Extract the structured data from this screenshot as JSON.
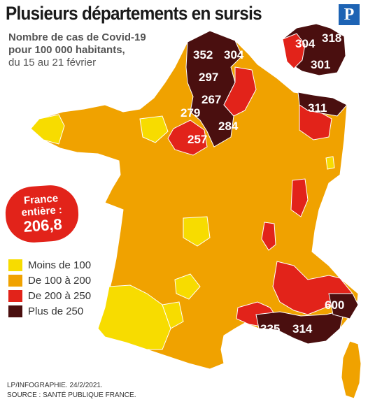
{
  "header": {
    "title": "Plusieurs départements en sursis",
    "subtitle_line1": "Nombre de cas de Covid-19",
    "subtitle_line2": "pour 100 000 habitants,",
    "subtitle_dates": "du 15 au 21 février",
    "logo": "P"
  },
  "badge": {
    "line1": "France",
    "line2": "entière :",
    "value": "206,8"
  },
  "legend": [
    {
      "label": "Moins de 100",
      "color": "#f7dc00"
    },
    {
      "label": "De 100 à 200",
      "color": "#f0a200"
    },
    {
      "label": "De 200 à 250",
      "color": "#e2231a"
    },
    {
      "label": "Plus de 250",
      "color": "#4a0f0f"
    }
  ],
  "labels": {
    "d352": "352",
    "d304a": "304",
    "d297": "297",
    "d267": "267",
    "d279": "279",
    "d284": "284",
    "d257": "257",
    "d304b": "304",
    "d318": "318",
    "d301": "301",
    "d311": "311",
    "d600": "600",
    "d335": "335",
    "d314": "314"
  },
  "credits": {
    "line1": "LP/INFOGRAPHIE.  24/2/2021.",
    "line2": "SOURCE : SANTÉ PUBLIQUE FRANCE."
  }
}
